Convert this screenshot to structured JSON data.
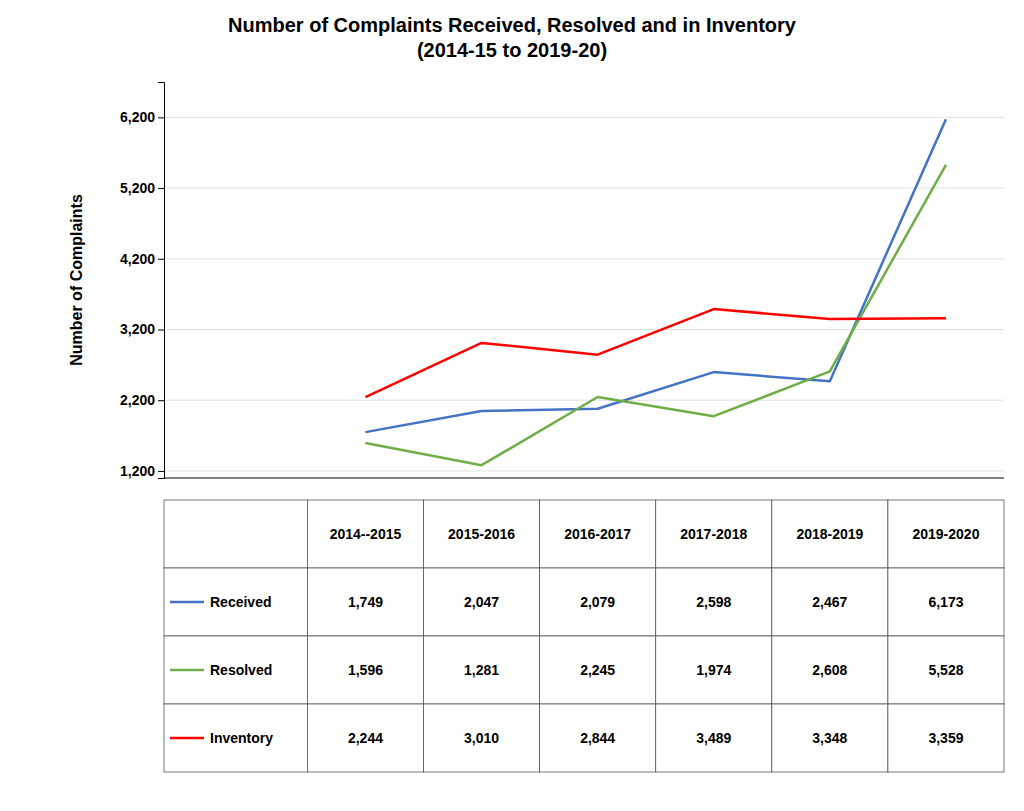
{
  "chart_data": {
    "type": "line",
    "title": "Number of Complaints Received, Resolved and in Inventory\n(2014-15 to 2019-20)",
    "y_label": "Number of Complaints",
    "categories": [
      "2014--2015",
      "2015-2016",
      "2016-2017",
      "2017-2018",
      "2018-2019",
      "2019-2020"
    ],
    "series": [
      {
        "name": "Received",
        "color": "#4472C4",
        "values": [
          1749,
          2047,
          2079,
          2598,
          2467,
          6173
        ],
        "value_labels": [
          "1,749",
          "2,047",
          "2,079",
          "2,598",
          "2,467",
          "6,173"
        ]
      },
      {
        "name": "Resolved",
        "color": "#70AD47",
        "values": [
          1596,
          1281,
          2245,
          1974,
          2608,
          5528
        ],
        "value_labels": [
          "1,596",
          "1,281",
          "2,245",
          "1,974",
          "2,608",
          "5,528"
        ]
      },
      {
        "name": "Inventory",
        "color": "#FF0000",
        "values": [
          2244,
          3010,
          2844,
          3489,
          3348,
          3359
        ],
        "value_labels": [
          "2,244",
          "3,010",
          "2,844",
          "3,489",
          "3,348",
          "3,359"
        ]
      }
    ],
    "ylim": [
      1100,
      6700
    ],
    "yticks": [
      {
        "value": 1200,
        "label": "1,200"
      },
      {
        "value": 2200,
        "label": "2,200"
      },
      {
        "value": 3200,
        "label": "3,200"
      },
      {
        "value": 4200,
        "label": "4,200"
      },
      {
        "value": 5200,
        "label": "5,200"
      },
      {
        "value": 6200,
        "label": "6,200"
      }
    ],
    "grid": true,
    "tick_labels": "y"
  }
}
